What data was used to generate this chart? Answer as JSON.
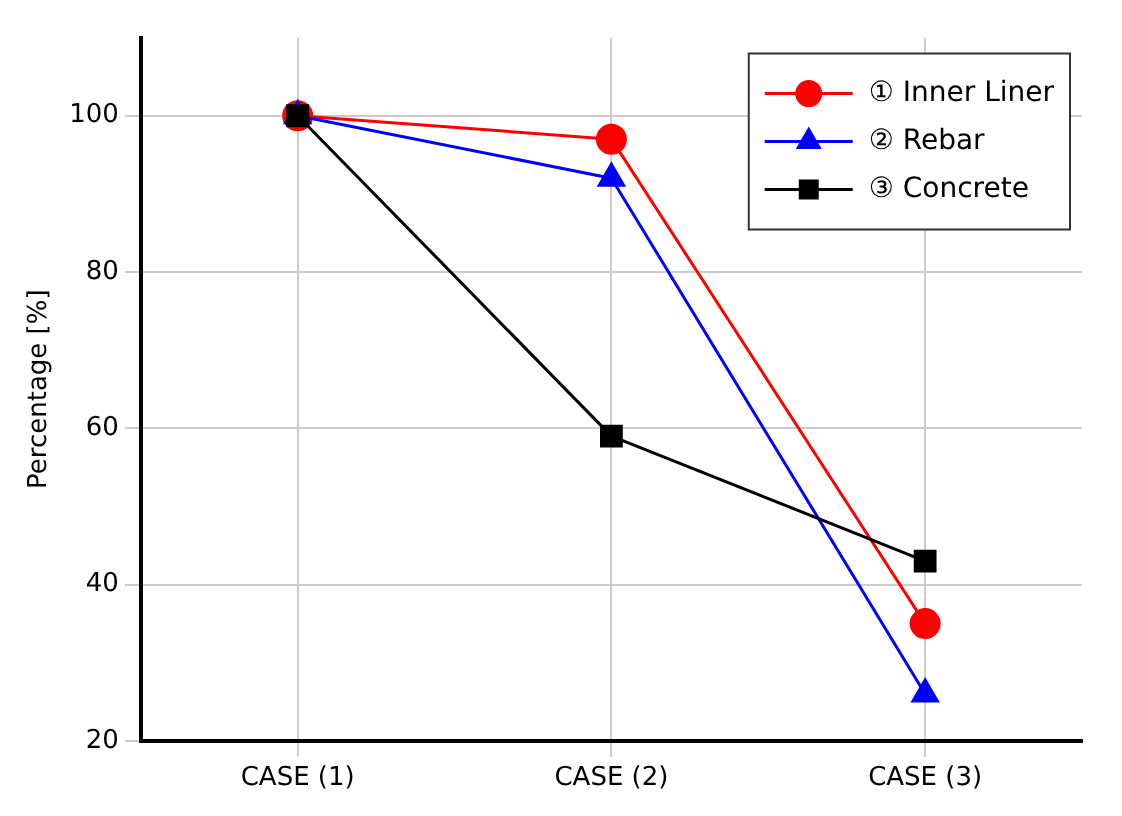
{
  "chart_data": {
    "type": "line",
    "ylabel": "Percentage [%]",
    "categories": [
      "CASE (1)",
      "CASE (2)",
      "CASE (3)"
    ],
    "series": [
      {
        "name": "① Inner Liner",
        "color": "#ff0000",
        "marker": "circle",
        "values": [
          100,
          97,
          35
        ]
      },
      {
        "name": "② Rebar",
        "color": "#0000ff",
        "marker": "triangle",
        "values": [
          100,
          92,
          26
        ]
      },
      {
        "name": "③ Concrete",
        "color": "#000000",
        "marker": "square",
        "values": [
          100,
          59,
          43
        ]
      }
    ],
    "ylim": [
      20,
      110
    ],
    "yticks": [
      20,
      40,
      60,
      80,
      100
    ],
    "grid": true,
    "legend": "top right",
    "line_style": "solid"
  }
}
